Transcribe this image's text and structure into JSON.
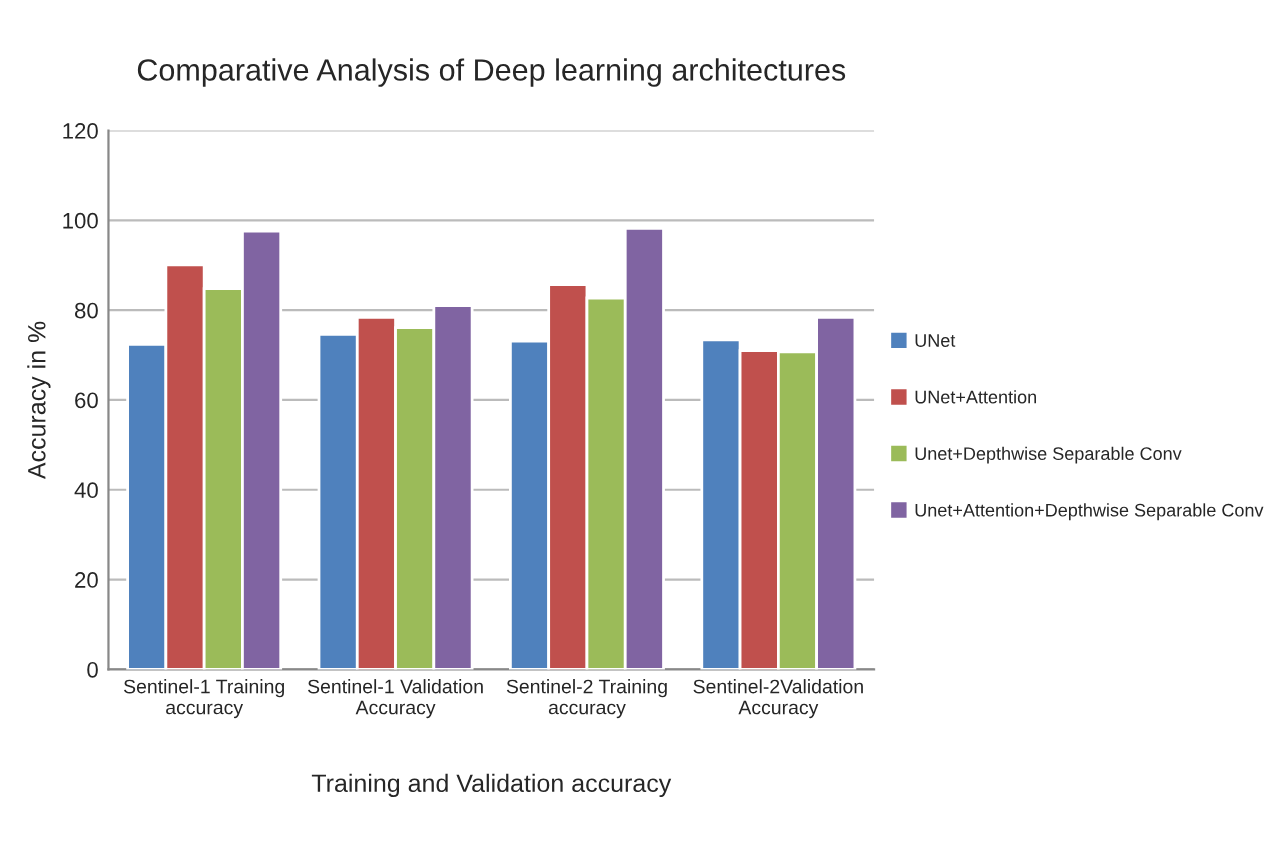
{
  "chart_data": {
    "type": "bar",
    "title": "Comparative Analysis of Deep learning architectures",
    "xlabel": "Training and Validation accuracy",
    "ylabel": "Accuracy in %",
    "categories": [
      "Sentinel-1 Training\naccuracy",
      "Sentinel-1 Validation\nAccuracy",
      "Sentinel-2 Training\naccuracy",
      "Sentinel-2Validation\nAccuracy"
    ],
    "series": [
      {
        "name": "UNet",
        "color": "#4f81bd",
        "values": [
          72.4,
          74.6,
          73.1,
          73.4
        ]
      },
      {
        "name": "UNet+Attention",
        "color": "#c0504d",
        "values": [
          90.1,
          78.4,
          85.7,
          71.0
        ]
      },
      {
        "name": "Unet+Depthwise Separable Conv",
        "color": "#9bbb59",
        "values": [
          84.8,
          76.1,
          82.7,
          70.7
        ]
      },
      {
        "name": "Unet+Attention+Depthwise Separable Conv",
        "color": "#8064a2",
        "values": [
          97.6,
          81.0,
          98.2,
          78.4
        ]
      }
    ],
    "ylim": [
      0,
      120
    ],
    "yticks": [
      0,
      20,
      40,
      60,
      80,
      100,
      120
    ],
    "grid": "y",
    "legend": "right"
  }
}
